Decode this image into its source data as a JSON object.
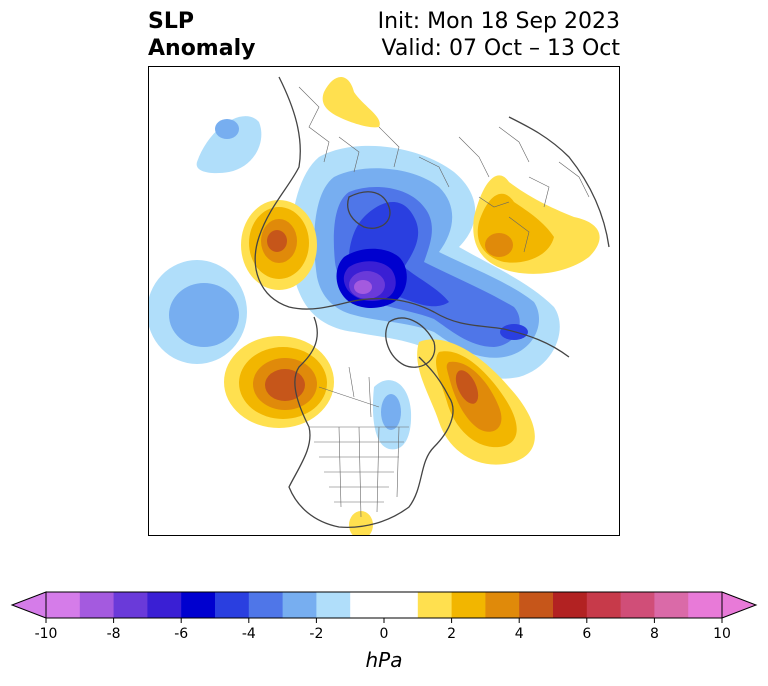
{
  "header": {
    "title_line1": "SLP",
    "title_line2": "Anomaly",
    "init_text": "Init: Mon 18 Sep 2023",
    "valid_text": "Valid: 07 Oct – 13 Oct"
  },
  "colorbar": {
    "unit_label": "hPa",
    "ticks": [
      "-10",
      "-8",
      "-6",
      "-4",
      "-2",
      "0",
      "2",
      "4",
      "6",
      "8",
      "10"
    ],
    "tick_values": [
      -10,
      -8,
      -6,
      -4,
      -2,
      0,
      2,
      4,
      6,
      8,
      10
    ],
    "min": -10,
    "max": 10,
    "colors": [
      "#d57ce9",
      "#a45adf",
      "#6a3ad9",
      "#3a1fd4",
      "#0000cf",
      "#2a3fe0",
      "#4f76e8",
      "#77aef0",
      "#b0defa",
      "#ffffff",
      "#ffffff",
      "#ffe04f",
      "#f2b600",
      "#e08a0a",
      "#c6561a",
      "#b22222",
      "#c73a4a",
      "#d04e78",
      "#da6aa8",
      "#e87ad8"
    ],
    "extend": "both"
  },
  "map": {
    "projection": "north polar stereographic",
    "features": [
      "coastlines",
      "country borders",
      "US state borders"
    ],
    "anomalies": [
      {
        "name": "Arctic low",
        "sign": "negative",
        "peak_hpa": -9
      },
      {
        "name": "Central Siberia high",
        "sign": "positive",
        "peak_hpa": 4
      },
      {
        "name": "Northwest Europe high",
        "sign": "positive",
        "peak_hpa": 5
      },
      {
        "name": "North Pacific high",
        "sign": "positive",
        "peak_hpa": 5
      },
      {
        "name": "Western Canada / Alaska high",
        "sign": "positive",
        "peak_hpa": 5
      },
      {
        "name": "North Atlantic low",
        "sign": "negative",
        "peak_hpa": -4
      },
      {
        "name": "Western Europe low",
        "sign": "negative",
        "peak_hpa": -3
      }
    ]
  }
}
